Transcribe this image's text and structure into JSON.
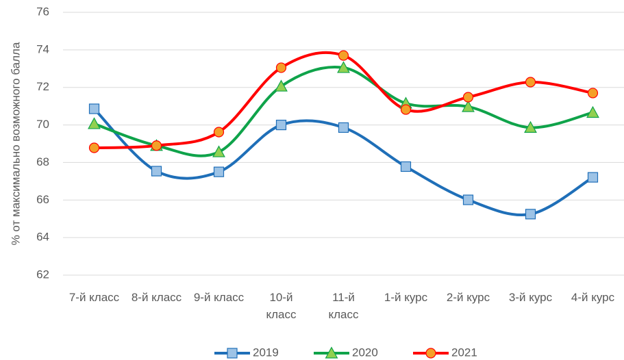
{
  "chart_data": {
    "type": "line",
    "y_label": "% от максимально возможного балла",
    "categories": [
      "7-й класс",
      "8-й класс",
      "9-й класс",
      "10-й класс",
      "11-й класс",
      "1-й курс",
      "2-й курс",
      "3-й курс",
      "4-й курс"
    ],
    "series": [
      {
        "name": "2019",
        "color": "#1f6fb8",
        "marker": "square",
        "marker_color": "#9dc3e6",
        "values": [
          70.86,
          67.54,
          67.5,
          70.0,
          69.86,
          67.78,
          66.01,
          65.25,
          67.21
        ]
      },
      {
        "name": "2020",
        "color": "#0fa34a",
        "marker": "triangle",
        "marker_color": "#92d050",
        "values": [
          70.06,
          68.9,
          68.56,
          72.06,
          73.05,
          71.15,
          70.97,
          69.86,
          70.66
        ]
      },
      {
        "name": "2021",
        "color": "#ff0000",
        "marker": "circle",
        "marker_color": "#f4a028",
        "values": [
          68.78,
          68.9,
          69.62,
          73.05,
          73.7,
          70.82,
          71.48,
          72.28,
          71.7
        ]
      }
    ],
    "smooth": true,
    "ylim": [
      62,
      76
    ],
    "yticks": [
      62,
      64,
      66,
      68,
      70,
      72,
      74,
      76
    ],
    "grid": true,
    "legend": "bottom"
  }
}
